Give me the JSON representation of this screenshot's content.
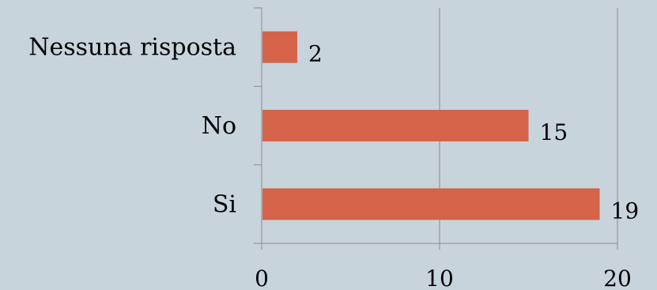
{
  "chart_data": {
    "type": "bar",
    "orientation": "horizontal",
    "title": "",
    "xlabel": "",
    "ylabel": "",
    "categories": [
      "Nessuna risposta",
      "No",
      "Si"
    ],
    "values": [
      2,
      15,
      19
    ],
    "xlim": [
      0,
      20
    ],
    "xticks": [
      "0",
      "10",
      "20"
    ],
    "grid": "vertical",
    "legend": "none",
    "colors": {
      "bar": "#d4634a",
      "background": "#c8d4dc"
    }
  }
}
